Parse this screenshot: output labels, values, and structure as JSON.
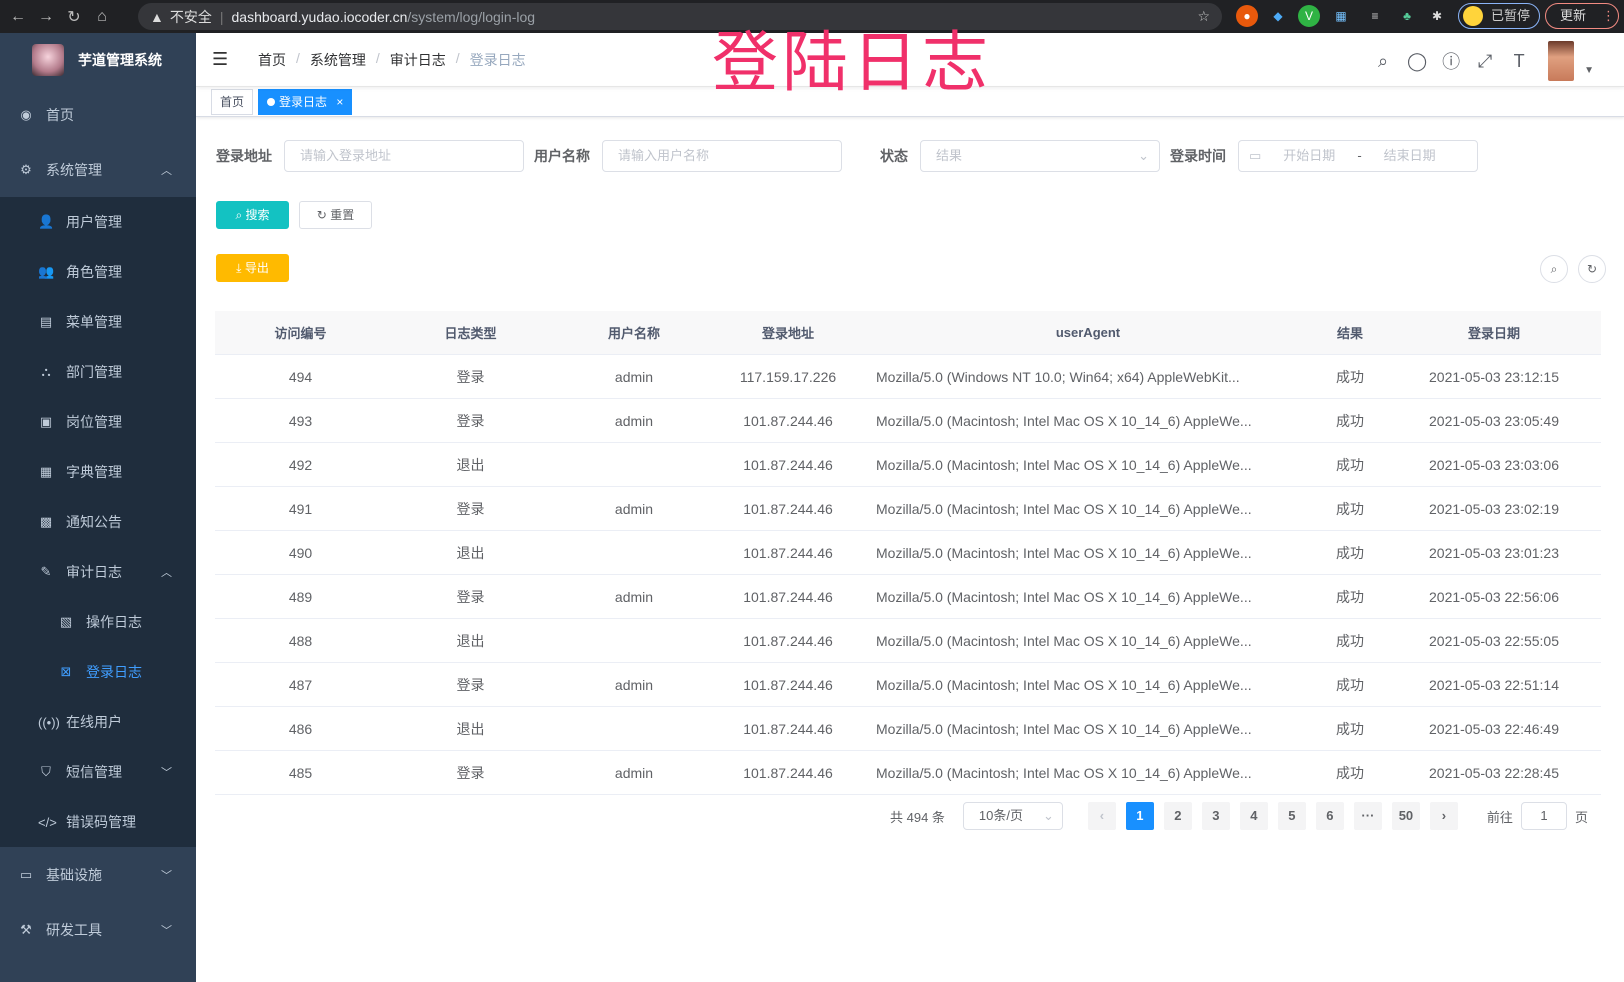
{
  "browser": {
    "back": "←",
    "forward": "→",
    "reload": "↻",
    "home": "⌂",
    "security": "不安全",
    "url_host": "dashboard.yudao.iocoder.cn",
    "url_path": "/system/log/login-log",
    "paused": "已暂停",
    "update": "更新"
  },
  "app": {
    "name": "芋道管理系统",
    "overlay_title": "登陆日志"
  },
  "sidebar": {
    "items": [
      {
        "label": "首页",
        "icon": "dashboard-icon",
        "glyph": "◉",
        "level": 0
      },
      {
        "label": "系统管理",
        "icon": "gear-icon",
        "glyph": "⚙",
        "level": 0,
        "arrow": "up"
      },
      {
        "label": "用户管理",
        "icon": "user-icon",
        "glyph": "👤",
        "level": 1
      },
      {
        "label": "角色管理",
        "icon": "peoples-icon",
        "glyph": "👥",
        "level": 1
      },
      {
        "label": "菜单管理",
        "icon": "tree-table-icon",
        "glyph": "▤",
        "level": 1
      },
      {
        "label": "部门管理",
        "icon": "tree-icon",
        "glyph": "⛬",
        "level": 1
      },
      {
        "label": "岗位管理",
        "icon": "post-icon",
        "glyph": "▣",
        "level": 1
      },
      {
        "label": "字典管理",
        "icon": "dict-icon",
        "glyph": "▦",
        "level": 1
      },
      {
        "label": "通知公告",
        "icon": "message-icon",
        "glyph": "▩",
        "level": 1
      },
      {
        "label": "审计日志",
        "icon": "log-icon",
        "glyph": "✎",
        "level": 1,
        "arrow": "up"
      },
      {
        "label": "操作日志",
        "icon": "form-icon",
        "glyph": "▧",
        "level": 2
      },
      {
        "label": "登录日志",
        "icon": "logininfor-icon",
        "glyph": "⊠",
        "level": 2,
        "active": true
      },
      {
        "label": "在线用户",
        "icon": "online-icon",
        "glyph": "((•))",
        "level": 1
      },
      {
        "label": "短信管理",
        "icon": "validCode-icon",
        "glyph": "⛉",
        "level": 1,
        "arrow": "down"
      },
      {
        "label": "错误码管理",
        "icon": "code-icon",
        "glyph": "</>",
        "level": 1
      },
      {
        "label": "基础设施",
        "icon": "monitor-icon",
        "glyph": "▭",
        "level": 0,
        "arrow": "down"
      },
      {
        "label": "研发工具",
        "icon": "tool-icon",
        "glyph": "⚒",
        "level": 0,
        "arrow": "down"
      }
    ]
  },
  "breadcrumb": [
    "首页",
    "系统管理",
    "审计日志",
    "登录日志"
  ],
  "tags": {
    "home": "首页",
    "active": "登录日志",
    "close": "×"
  },
  "filters": {
    "address_label": "登录地址",
    "address_placeholder": "请输入登录地址",
    "username_label": "用户名称",
    "username_placeholder": "请输入用户名称",
    "status_label": "状态",
    "status_placeholder": "结果",
    "time_label": "登录时间",
    "start_placeholder": "开始日期",
    "range_sep": "-",
    "end_placeholder": "结束日期"
  },
  "buttons": {
    "search": "搜索",
    "reset": "重置",
    "export": "导出"
  },
  "colors": {
    "primary": "#1890ff",
    "search": "#13c2c2",
    "export": "#ffba00",
    "sidebar": "#304156",
    "submenu": "#1f2d3d"
  },
  "table": {
    "columns": [
      "访问编号",
      "日志类型",
      "用户名称",
      "登录地址",
      "userAgent",
      "结果",
      "登录日期"
    ],
    "rows": [
      [
        "494",
        "登录",
        "admin",
        "117.159.17.226",
        "Mozilla/5.0 (Windows NT 10.0; Win64; x64) AppleWebKit...",
        "成功",
        "2021-05-03 23:12:15"
      ],
      [
        "493",
        "登录",
        "admin",
        "101.87.244.46",
        "Mozilla/5.0 (Macintosh; Intel Mac OS X 10_14_6) AppleWe...",
        "成功",
        "2021-05-03 23:05:49"
      ],
      [
        "492",
        "退出",
        "",
        "101.87.244.46",
        "Mozilla/5.0 (Macintosh; Intel Mac OS X 10_14_6) AppleWe...",
        "成功",
        "2021-05-03 23:03:06"
      ],
      [
        "491",
        "登录",
        "admin",
        "101.87.244.46",
        "Mozilla/5.0 (Macintosh; Intel Mac OS X 10_14_6) AppleWe...",
        "成功",
        "2021-05-03 23:02:19"
      ],
      [
        "490",
        "退出",
        "",
        "101.87.244.46",
        "Mozilla/5.0 (Macintosh; Intel Mac OS X 10_14_6) AppleWe...",
        "成功",
        "2021-05-03 23:01:23"
      ],
      [
        "489",
        "登录",
        "admin",
        "101.87.244.46",
        "Mozilla/5.0 (Macintosh; Intel Mac OS X 10_14_6) AppleWe...",
        "成功",
        "2021-05-03 22:56:06"
      ],
      [
        "488",
        "退出",
        "",
        "101.87.244.46",
        "Mozilla/5.0 (Macintosh; Intel Mac OS X 10_14_6) AppleWe...",
        "成功",
        "2021-05-03 22:55:05"
      ],
      [
        "487",
        "登录",
        "admin",
        "101.87.244.46",
        "Mozilla/5.0 (Macintosh; Intel Mac OS X 10_14_6) AppleWe...",
        "成功",
        "2021-05-03 22:51:14"
      ],
      [
        "486",
        "退出",
        "",
        "101.87.244.46",
        "Mozilla/5.0 (Macintosh; Intel Mac OS X 10_14_6) AppleWe...",
        "成功",
        "2021-05-03 22:46:49"
      ],
      [
        "485",
        "登录",
        "admin",
        "101.87.244.46",
        "Mozilla/5.0 (Macintosh; Intel Mac OS X 10_14_6) AppleWe...",
        "成功",
        "2021-05-03 22:28:45"
      ]
    ]
  },
  "pagination": {
    "total": "共 494 条",
    "page_size": "10条/页",
    "prev": "‹",
    "pages": [
      "1",
      "2",
      "3",
      "4",
      "5",
      "6",
      "···",
      "50"
    ],
    "current": "1",
    "next": "›",
    "goto_label": "前往",
    "goto_value": "1",
    "goto_suffix": "页"
  }
}
